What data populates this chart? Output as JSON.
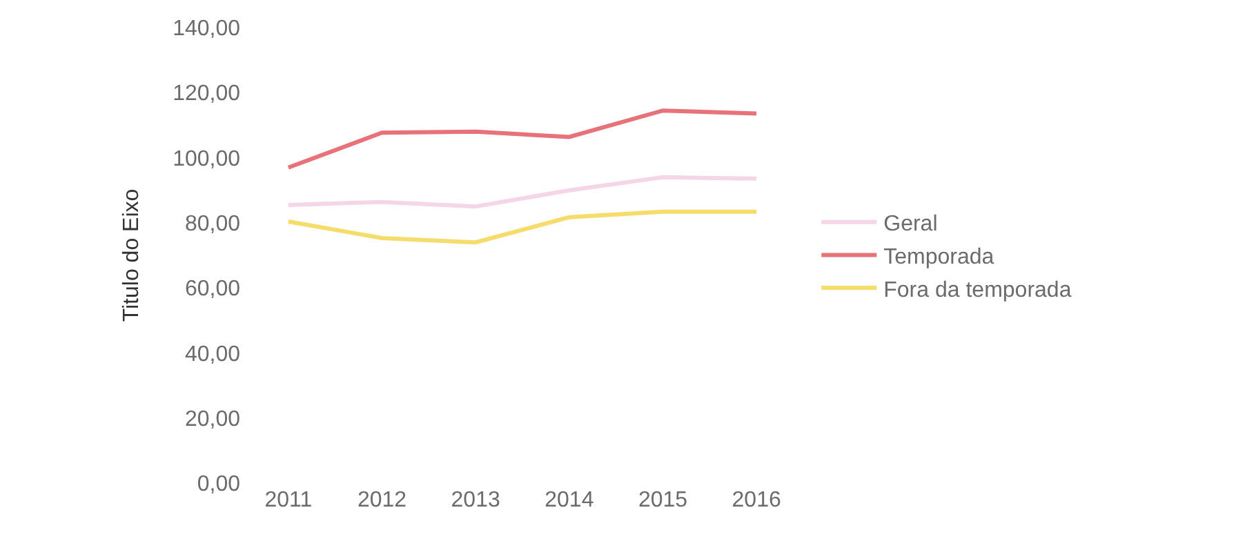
{
  "chart_data": {
    "type": "line",
    "ylabel": "Titulo do Eixo",
    "categories": [
      "2011",
      "2012",
      "2013",
      "2014",
      "2015",
      "2016"
    ],
    "series": [
      {
        "name": "Geral",
        "color": "#f4d6e6",
        "values": [
          85.5,
          86.4,
          85,
          90,
          94,
          93.6
        ]
      },
      {
        "name": "Temporada",
        "color": "#e8727a",
        "values": [
          97,
          107.7,
          108,
          106.4,
          114.5,
          113.6
        ]
      },
      {
        "name": "Fora da temporada",
        "color": "#f6dc6b",
        "values": [
          80.4,
          75.3,
          74,
          81.7,
          83.4,
          83.4
        ]
      }
    ],
    "ylim": [
      0,
      140
    ],
    "yticks": [
      {
        "value": 0,
        "label": "0,00"
      },
      {
        "value": 20,
        "label": "20,00"
      },
      {
        "value": 40,
        "label": "40,00"
      },
      {
        "value": 60,
        "label": "60,00"
      },
      {
        "value": 80,
        "label": "80,00"
      },
      {
        "value": 100,
        "label": "100,00"
      },
      {
        "value": 120,
        "label": "120,00"
      },
      {
        "value": 140,
        "label": "140,00"
      }
    ],
    "grid": false,
    "legend": "right",
    "marker": "none",
    "line_style": "solid"
  }
}
